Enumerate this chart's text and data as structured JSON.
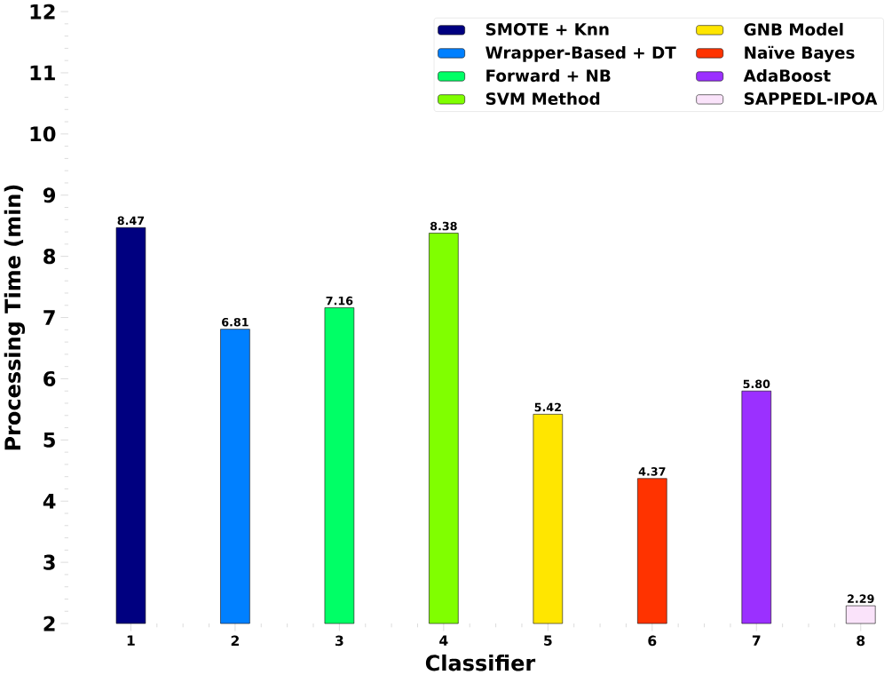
{
  "chart_data": {
    "type": "bar",
    "xlabel": "Classifier",
    "ylabel": "Processing Time (min)",
    "categories": [
      "1",
      "2",
      "3",
      "4",
      "5",
      "6",
      "7",
      "8"
    ],
    "series": [
      {
        "name": "SMOTE + Knn",
        "color": "#000080",
        "values": [
          8.47,
          null,
          null,
          null,
          null,
          null,
          null,
          null
        ],
        "value_labels": [
          "8.47",
          null,
          null,
          null,
          null,
          null,
          null,
          null
        ]
      },
      {
        "name": "Wrapper-Based + DT",
        "color": "#0080ff",
        "values": [
          null,
          6.81,
          null,
          null,
          null,
          null,
          null,
          null
        ],
        "value_labels": [
          null,
          "6.81",
          null,
          null,
          null,
          null,
          null,
          null
        ]
      },
      {
        "name": "Forward + NB",
        "color": "#00ff66",
        "values": [
          null,
          null,
          7.16,
          null,
          null,
          null,
          null,
          null
        ],
        "value_labels": [
          null,
          null,
          "7.16",
          null,
          null,
          null,
          null,
          null
        ]
      },
      {
        "name": "SVM Method",
        "color": "#80ff00",
        "values": [
          null,
          null,
          null,
          8.38,
          null,
          null,
          null,
          null
        ],
        "value_labels": [
          null,
          null,
          null,
          "8.38",
          null,
          null,
          null,
          null
        ]
      },
      {
        "name": "GNB Model",
        "color": "#ffe600",
        "values": [
          null,
          null,
          null,
          null,
          5.42,
          null,
          null,
          null
        ],
        "value_labels": [
          null,
          null,
          null,
          null,
          "5.42",
          null,
          null,
          null
        ]
      },
      {
        "name": "Naïve Bayes",
        "color": "#ff3300",
        "values": [
          null,
          null,
          null,
          null,
          null,
          4.37,
          null,
          null
        ],
        "value_labels": [
          null,
          null,
          null,
          null,
          null,
          "4.37",
          null,
          null
        ]
      },
      {
        "name": "AdaBoost",
        "color": "#9b30ff",
        "values": [
          null,
          null,
          null,
          null,
          null,
          null,
          5.8,
          null
        ],
        "value_labels": [
          null,
          null,
          null,
          null,
          null,
          null,
          "5.80",
          null
        ]
      },
      {
        "name": "SAPPEDL-IPOA",
        "color": "#fae3fa",
        "values": [
          null,
          null,
          null,
          null,
          null,
          null,
          null,
          2.29
        ],
        "value_labels": [
          null,
          null,
          null,
          null,
          null,
          null,
          null,
          "2.29"
        ]
      }
    ],
    "ylim": [
      2,
      12
    ],
    "yticks": [
      2,
      3,
      4,
      5,
      6,
      7,
      8,
      9,
      10,
      11,
      12
    ],
    "legend": "top right"
  }
}
